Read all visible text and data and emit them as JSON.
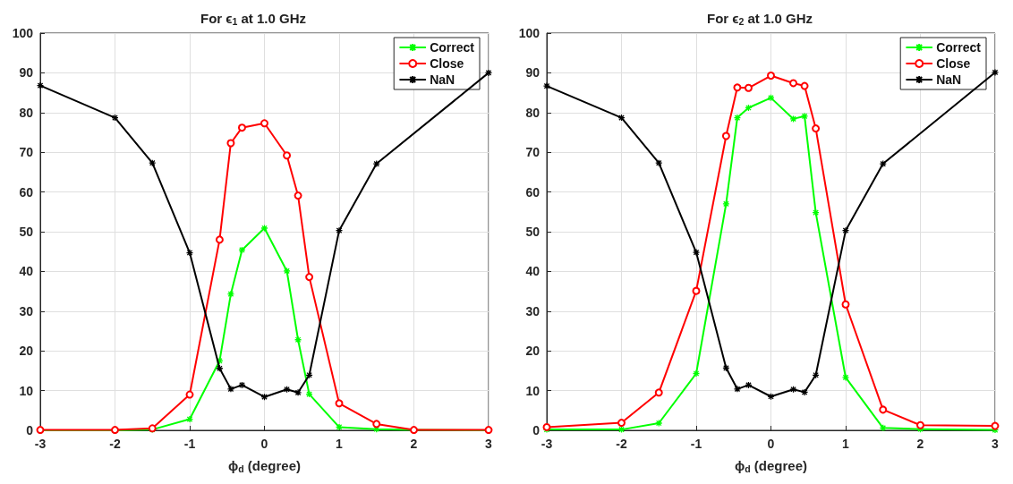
{
  "chart_data": [
    {
      "type": "line",
      "title": "For ϵ$_{1}$ at 1.0 GHz",
      "xlabel": "ϕ$_{d}$ (degree)",
      "x": [
        -3,
        -2,
        -1.5,
        -1,
        -0.6,
        -0.45,
        -0.3,
        0,
        0.3,
        0.45,
        0.6,
        1,
        1.5,
        2,
        3
      ],
      "xlim": [
        -3,
        3
      ],
      "xticks": [
        -3,
        -2,
        -1,
        0,
        1,
        2,
        3
      ],
      "ylim": [
        0,
        100
      ],
      "yticks": [
        0,
        10,
        20,
        30,
        40,
        50,
        60,
        70,
        80,
        90,
        100
      ],
      "grid": true,
      "legend": "top right",
      "line_style": "solid",
      "series": [
        {
          "name": "Correct",
          "color": "#00ff00",
          "marker": "cross",
          "values": [
            0,
            0,
            0.2,
            2.8,
            17.5,
            34.3,
            45.4,
            50.9,
            40.1,
            22.8,
            9.1,
            0.8,
            0.3,
            0.1,
            0
          ]
        },
        {
          "name": "Close",
          "color": "#ff0000",
          "marker": "circle",
          "values": [
            0.1,
            0.1,
            0.5,
            9.0,
            48.0,
            72.3,
            76.2,
            77.3,
            69.2,
            59.1,
            38.6,
            6.8,
            1.6,
            0.1,
            0.1
          ]
        },
        {
          "name": "NaN",
          "color": "#000000",
          "marker": "cross",
          "values": [
            86.8,
            78.7,
            67.3,
            44.7,
            15.6,
            10.4,
            11.4,
            8.4,
            10.3,
            9.5,
            13.9,
            50.3,
            67.1,
            null,
            90
          ]
        }
      ]
    },
    {
      "type": "line",
      "title": "For ϵ$_{2}$ at 1.0 GHz",
      "xlabel": "ϕ$_{d}$ (degree)",
      "x": [
        -3,
        -2,
        -1.5,
        -1,
        -0.6,
        -0.45,
        -0.3,
        0,
        0.3,
        0.45,
        0.6,
        1,
        1.5,
        2,
        3
      ],
      "xlim": [
        -3,
        3
      ],
      "xticks": [
        -3,
        -2,
        -1,
        0,
        1,
        2,
        3
      ],
      "ylim": [
        0,
        100
      ],
      "yticks": [
        0,
        10,
        20,
        30,
        40,
        50,
        60,
        70,
        80,
        90,
        100
      ],
      "grid": true,
      "legend": "top right",
      "line_style": "solid",
      "series": [
        {
          "name": "Correct",
          "color": "#00ff00",
          "marker": "cross",
          "values": [
            0.2,
            0.2,
            1.8,
            14.3,
            57.0,
            78.7,
            81.2,
            83.7,
            78.4,
            79.1,
            54.8,
            13.3,
            0.6,
            0.3,
            0.1
          ]
        },
        {
          "name": "Close",
          "color": "#ff0000",
          "marker": "circle",
          "values": [
            0.8,
            1.9,
            9.5,
            35.1,
            74.1,
            86.3,
            86.2,
            89.3,
            87.4,
            86.7,
            76.0,
            31.7,
            5.2,
            1.3,
            1.1
          ]
        },
        {
          "name": "NaN",
          "color": "#000000",
          "marker": "cross",
          "values": [
            86.7,
            78.7,
            67.3,
            44.8,
            15.7,
            10.4,
            11.4,
            8.5,
            10.3,
            9.6,
            13.9,
            50.3,
            67.1,
            null,
            90.1
          ]
        }
      ]
    }
  ]
}
